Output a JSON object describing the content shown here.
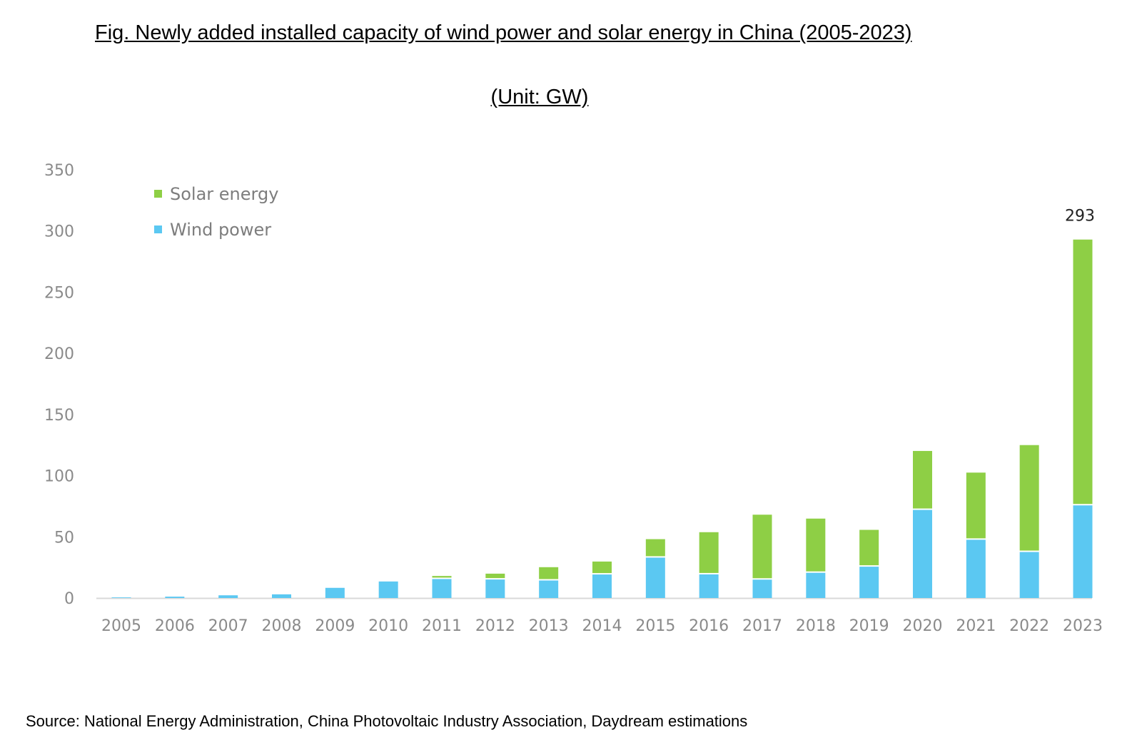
{
  "title": "Fig. Newly added installed capacity of wind power and solar energy in China (2005-2023)",
  "subtitle": "(Unit: GW)",
  "source": "Source: National Energy Administration, China Photovoltaic Industry Association, Daydream estimations",
  "colors": {
    "wind": "#5bc8f2",
    "solar": "#8ecf45",
    "axis": "#d9d9d9",
    "tick": "#8a8a8a"
  },
  "chart_data": {
    "type": "bar",
    "stacked": true,
    "title": "Fig. Newly added installed capacity of wind power and solar energy in China (2005-2023)",
    "subtitle": "(Unit: GW)",
    "categories": [
      "2005",
      "2006",
      "2007",
      "2008",
      "2009",
      "2010",
      "2011",
      "2012",
      "2013",
      "2014",
      "2015",
      "2016",
      "2017",
      "2018",
      "2019",
      "2020",
      "2021",
      "2022",
      "2023"
    ],
    "series": [
      {
        "name": "Wind power",
        "values": [
          0.5,
          1.1,
          2.2,
          3,
          8.3,
          13.5,
          15.5,
          15.1,
          14.3,
          19.2,
          33,
          19.3,
          15,
          20.6,
          25.6,
          72,
          47.6,
          37.6,
          75.7
        ]
      },
      {
        "name": "Solar energy",
        "values": [
          0,
          0,
          0,
          0,
          0,
          0.2,
          2.5,
          4.8,
          10.9,
          10.6,
          15.1,
          34.5,
          53.1,
          44.3,
          30.1,
          48.2,
          54.9,
          87.4,
          217.3
        ]
      }
    ],
    "ylim": [
      0,
      350
    ],
    "yticks": [
      0,
      50,
      100,
      150,
      200,
      250,
      300,
      350
    ],
    "annotations": [
      {
        "category": "2023",
        "text": "293"
      }
    ],
    "legend": {
      "position": "top-left",
      "order": [
        "Solar energy",
        "Wind power"
      ]
    },
    "grid": false
  }
}
